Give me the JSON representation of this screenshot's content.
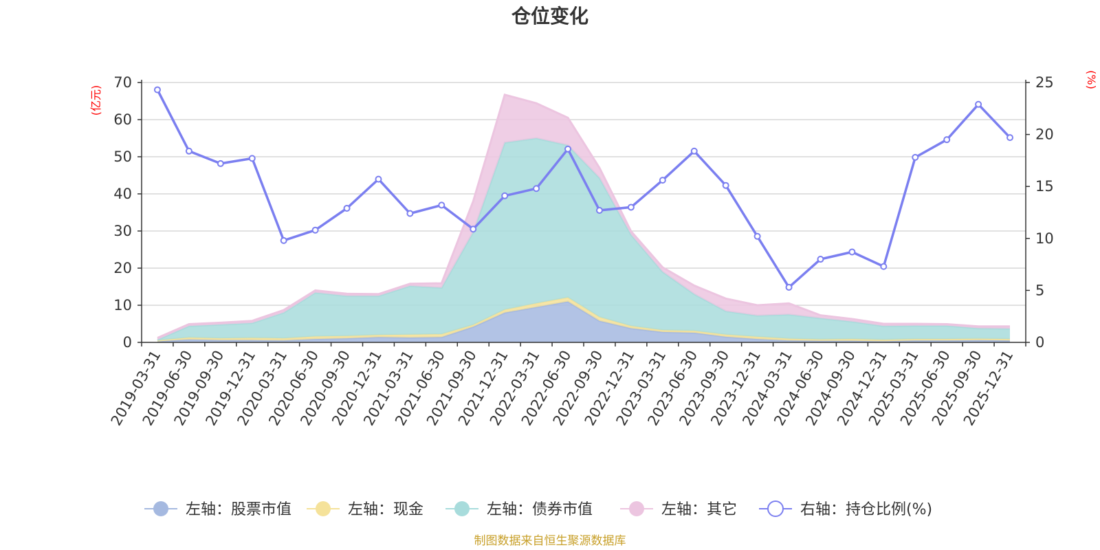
{
  "chart_data": {
    "type": "area",
    "title": "仓位变化",
    "source": "制图数据来自恒生聚源数据库",
    "left_axis": {
      "unit": "(亿元)",
      "min": 0,
      "max": 70,
      "ticks": [
        0,
        10,
        20,
        30,
        40,
        50,
        60,
        70
      ]
    },
    "right_axis": {
      "unit": "(%)",
      "min": 0,
      "max": 25,
      "ticks": [
        0,
        5,
        10,
        15,
        20,
        25
      ]
    },
    "categories": [
      "2019-03-31",
      "2019-06-30",
      "2019-09-30",
      "2019-12-31",
      "2020-03-31",
      "2020-06-30",
      "2020-09-30",
      "2020-12-31",
      "2021-03-31",
      "2021-06-30",
      "2021-09-30",
      "2021-12-31",
      "2022-03-31",
      "2022-06-30",
      "2022-09-30",
      "2022-12-31",
      "2023-03-31",
      "2023-06-30",
      "2023-09-30",
      "2023-12-31",
      "2024-03-31",
      "2024-06-30",
      "2024-09-30",
      "2024-12-31",
      "2025-03-31",
      "2025-06-30",
      "2025-09-30",
      "2025-12-31"
    ],
    "series": [
      {
        "name": "左轴：股票市值",
        "axis": "left",
        "type": "stacked-area",
        "color": "#a5b9e0",
        "values": [
          0.3,
          0.8,
          0.6,
          0.6,
          0.5,
          0.9,
          1.1,
          1.4,
          1.3,
          1.4,
          4.2,
          8.0,
          9.5,
          11.0,
          5.8,
          3.8,
          2.8,
          2.6,
          1.5,
          0.9,
          0.5,
          0.4,
          0.4,
          0.3,
          0.5,
          0.5,
          0.6,
          0.5
        ]
      },
      {
        "name": "左轴：现金",
        "axis": "left",
        "type": "stacked-area",
        "color": "#f5e29a",
        "values": [
          0.2,
          0.5,
          0.5,
          0.6,
          0.6,
          0.7,
          0.6,
          0.6,
          0.8,
          0.8,
          0.5,
          0.8,
          1.0,
          1.1,
          1.0,
          0.6,
          0.5,
          0.5,
          0.6,
          0.6,
          0.5,
          0.4,
          0.5,
          0.4,
          0.4,
          0.4,
          0.4,
          0.4
        ]
      },
      {
        "name": "左轴：债券市值",
        "axis": "left",
        "type": "stacked-area",
        "color": "#a8dcdc",
        "values": [
          0.2,
          3.1,
          3.7,
          4.0,
          6.9,
          11.8,
          10.8,
          10.5,
          13.1,
          12.5,
          25.0,
          45.0,
          44.5,
          41.0,
          37.5,
          24.6,
          15.7,
          9.9,
          6.3,
          5.7,
          6.5,
          5.7,
          4.7,
          3.7,
          3.6,
          3.6,
          2.8,
          2.8
        ]
      },
      {
        "name": "左轴：其它",
        "axis": "left",
        "type": "stacked-area",
        "color": "#ecc5e0",
        "values": [
          0.5,
          0.5,
          0.5,
          0.6,
          0.7,
          0.6,
          0.6,
          0.5,
          0.6,
          1.2,
          8.3,
          12.9,
          9.4,
          7.4,
          2.7,
          0.9,
          1.2,
          2.3,
          3.4,
          2.8,
          3.0,
          0.8,
          0.7,
          0.6,
          0.5,
          0.4,
          0.5,
          0.6
        ]
      },
      {
        "name": "右轴：持仓比例(%)",
        "axis": "right",
        "type": "line",
        "color": "#7b7ff0",
        "values": [
          24.3,
          18.4,
          17.2,
          17.7,
          9.8,
          10.8,
          12.9,
          15.7,
          12.4,
          13.2,
          10.9,
          14.1,
          14.8,
          18.6,
          12.7,
          13.0,
          15.6,
          18.4,
          15.1,
          10.2,
          5.3,
          8.0,
          8.7,
          7.3,
          17.8,
          19.5,
          22.9,
          19.7
        ]
      }
    ],
    "legend": [
      {
        "label": "左轴：股票市值",
        "marker": "filled-circle",
        "color": "#a5b9e0"
      },
      {
        "label": "左轴：现金",
        "marker": "filled-circle",
        "color": "#f5e29a"
      },
      {
        "label": "左轴：债券市值",
        "marker": "filled-circle",
        "color": "#a8dcdc"
      },
      {
        "label": "左轴：其它",
        "marker": "filled-circle",
        "color": "#ecc5e0"
      },
      {
        "label": "右轴：持仓比例(%)",
        "marker": "hollow-circle",
        "color": "#7b7ff0"
      }
    ],
    "legend_position": "bottom-center",
    "grid": true
  }
}
